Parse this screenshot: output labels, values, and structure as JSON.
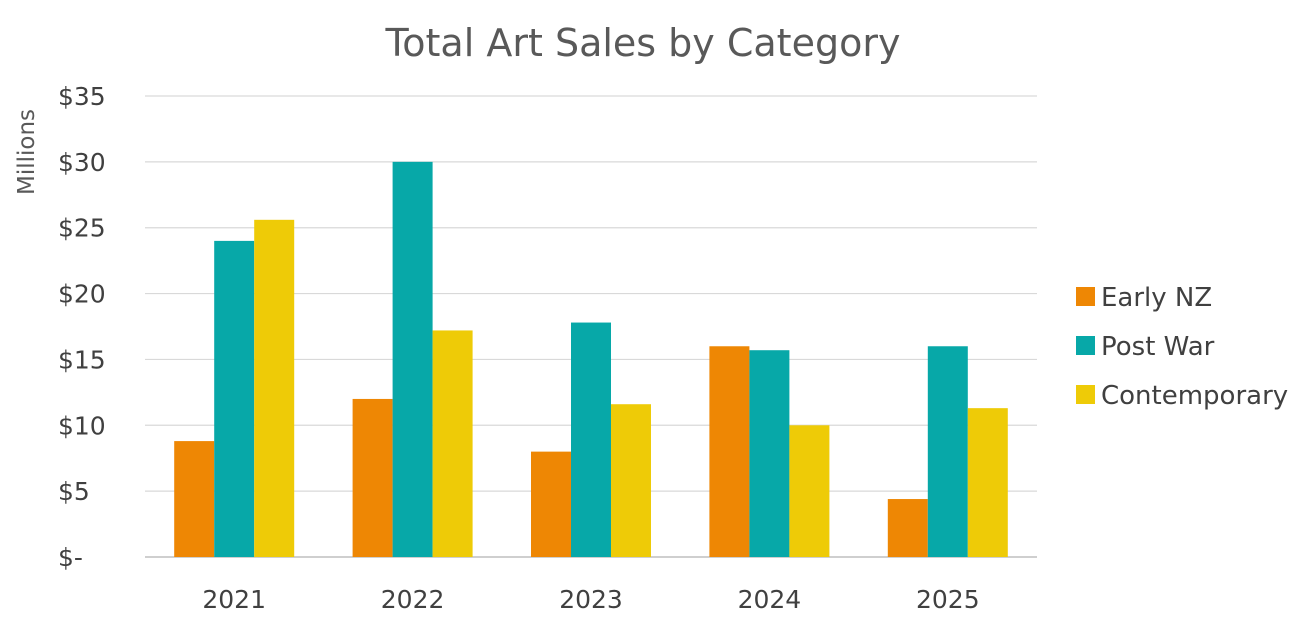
{
  "chart_data": {
    "type": "bar",
    "title": "Total Art Sales by Category",
    "ylabel": "Millions",
    "xlabel": "",
    "categories": [
      "2021",
      "2022",
      "2023",
      "2024",
      "2025"
    ],
    "series": [
      {
        "name": "Early NZ",
        "color": "#ee8704",
        "values": [
          8.8,
          12.0,
          8.0,
          16.0,
          4.4
        ]
      },
      {
        "name": "Post War",
        "color": "#07a8a8",
        "values": [
          24.0,
          30.0,
          17.8,
          15.7,
          16.0
        ]
      },
      {
        "name": "Contemporary",
        "color": "#eecb07",
        "values": [
          25.6,
          17.2,
          11.6,
          10.0,
          11.3
        ]
      }
    ],
    "ylim": [
      0,
      35
    ],
    "yticks": [
      0,
      5,
      10,
      15,
      20,
      25,
      30,
      35
    ],
    "ytick_labels": [
      "$-",
      "$5",
      "$10",
      "$15",
      "$20",
      "$25",
      "$30",
      "$35"
    ],
    "grid": true,
    "legend_position": "right"
  }
}
